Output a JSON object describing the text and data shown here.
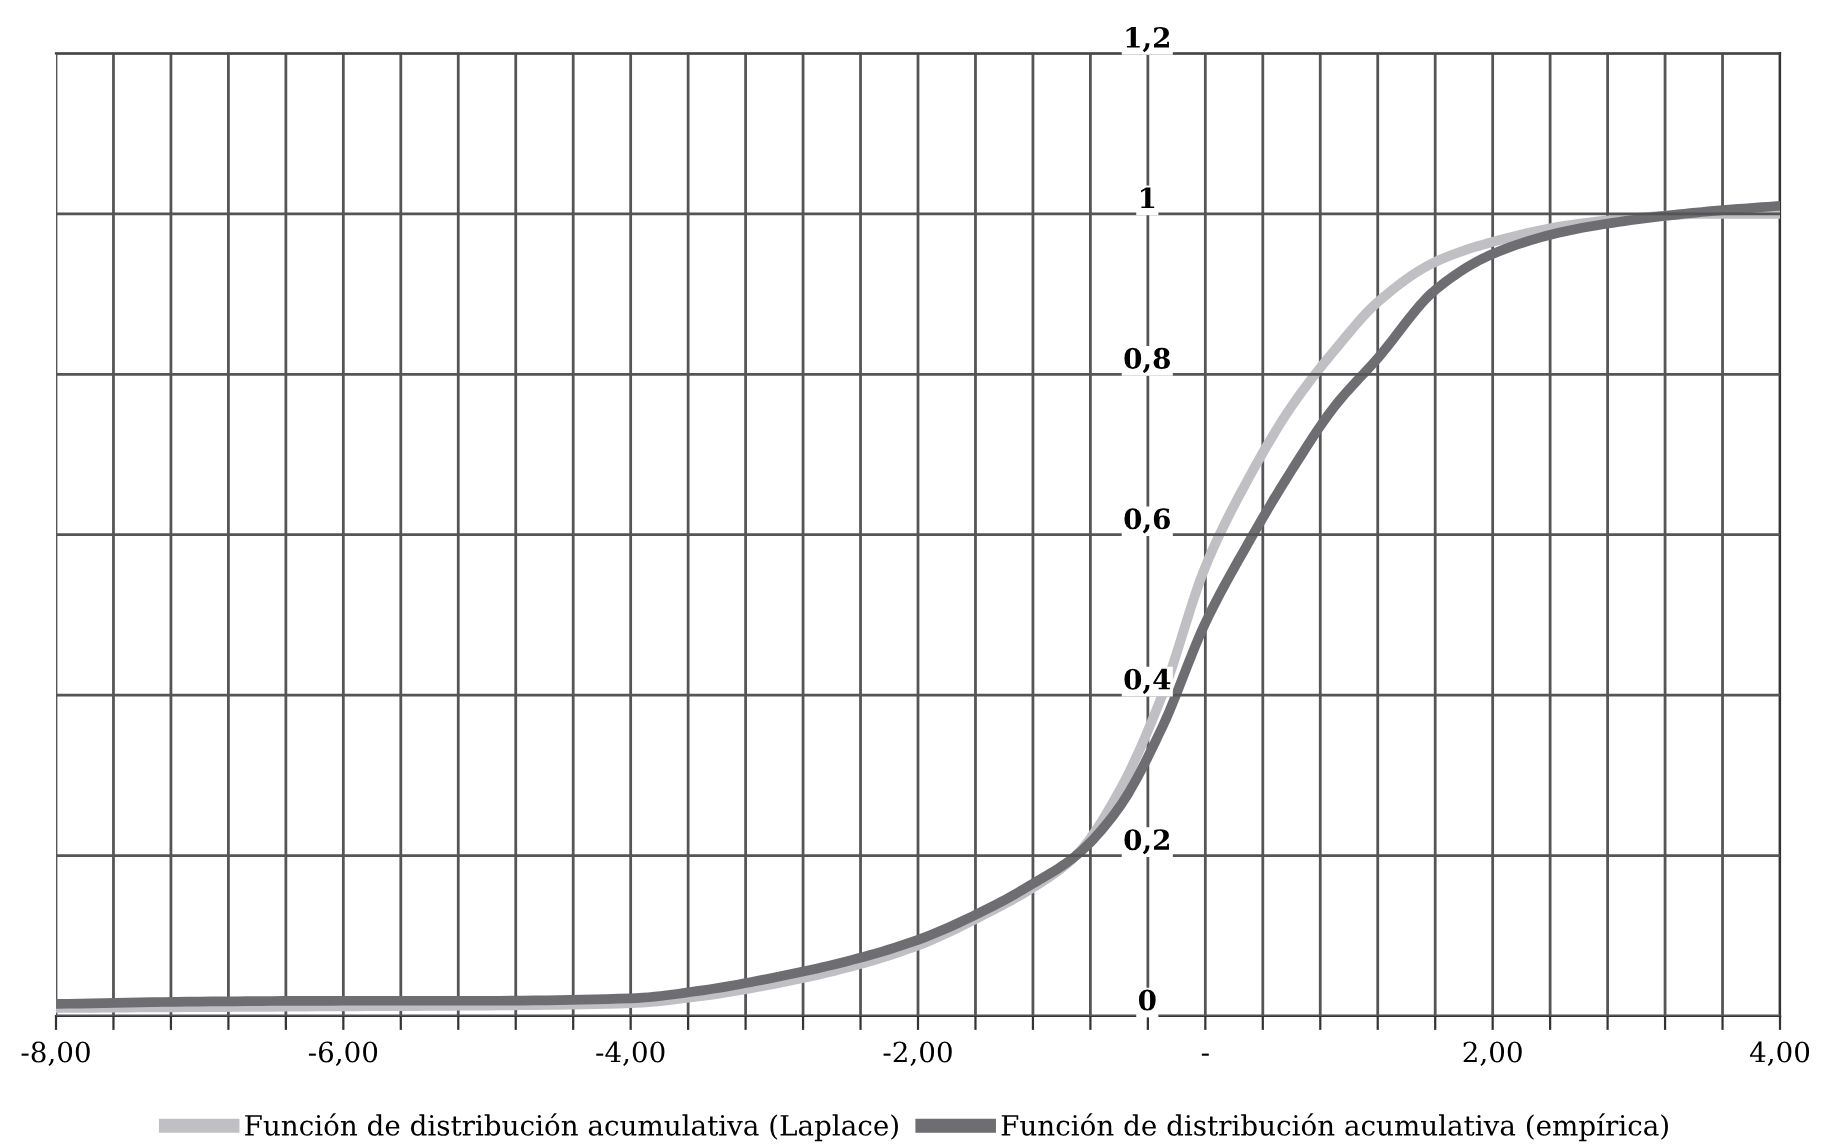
{
  "chart_data": {
    "type": "line",
    "x": [
      -8,
      -7,
      -6,
      -5,
      -4,
      -3.5,
      -3,
      -2.5,
      -2,
      -1.5,
      -1.2,
      -0.9,
      -0.6,
      -0.3,
      0,
      0.3,
      0.6,
      0.9,
      1.2,
      1.6,
      2,
      2.5,
      3,
      3.5,
      4
    ],
    "series": [
      {
        "name": "Función de distribución acumulativa (Laplace)",
        "color": "#c0c0c4",
        "values": [
          0.01,
          0.011,
          0.012,
          0.013,
          0.016,
          0.025,
          0.04,
          0.06,
          0.088,
          0.13,
          0.16,
          0.2,
          0.28,
          0.4,
          0.56,
          0.67,
          0.76,
          0.83,
          0.89,
          0.94,
          0.965,
          0.985,
          0.995,
          1.0,
          1.0
        ]
      },
      {
        "name": "Función de distribución acumulativa (empírica)",
        "color": "#6d6d72",
        "values": [
          0.015,
          0.018,
          0.019,
          0.019,
          0.022,
          0.032,
          0.048,
          0.068,
          0.095,
          0.135,
          0.165,
          0.2,
          0.26,
          0.36,
          0.49,
          0.59,
          0.68,
          0.76,
          0.82,
          0.905,
          0.95,
          0.978,
          0.993,
          1.003,
          1.01
        ]
      }
    ],
    "xlim": [
      -8,
      4
    ],
    "ylim": [
      0,
      1.2
    ],
    "xticks": [
      {
        "value": -8,
        "label": "-8,00"
      },
      {
        "value": -7.6,
        "label": null
      },
      {
        "value": -7.2,
        "label": null
      },
      {
        "value": -6.8,
        "label": null
      },
      {
        "value": -6.4,
        "label": null
      },
      {
        "value": -6,
        "label": "-6,00"
      },
      {
        "value": -5.6,
        "label": null
      },
      {
        "value": -5.2,
        "label": null
      },
      {
        "value": -4.8,
        "label": null
      },
      {
        "value": -4.4,
        "label": null
      },
      {
        "value": -4,
        "label": "-4,00"
      },
      {
        "value": -3.6,
        "label": null
      },
      {
        "value": -3.2,
        "label": null
      },
      {
        "value": -2.8,
        "label": null
      },
      {
        "value": -2.4,
        "label": null
      },
      {
        "value": -2,
        "label": "-2,00"
      },
      {
        "value": -1.6,
        "label": null
      },
      {
        "value": -1.2,
        "label": null
      },
      {
        "value": -0.8,
        "label": null
      },
      {
        "value": -0.4,
        "label": null
      },
      {
        "value": 0,
        "label": "-"
      },
      {
        "value": 0.4,
        "label": null
      },
      {
        "value": 0.8,
        "label": null
      },
      {
        "value": 1.2,
        "label": null
      },
      {
        "value": 1.6,
        "label": null
      },
      {
        "value": 2,
        "label": "2,00"
      },
      {
        "value": 2.4,
        "label": null
      },
      {
        "value": 2.8,
        "label": null
      },
      {
        "value": 3.2,
        "label": null
      },
      {
        "value": 3.6,
        "label": null
      },
      {
        "value": 4,
        "label": "4,00"
      }
    ],
    "yticks": [
      0,
      {
        "value": 0.2,
        "label": "0,2"
      },
      {
        "value": 0.4,
        "label": "0,4"
      },
      {
        "value": 0.6,
        "label": "0,6"
      },
      {
        "value": 0.8,
        "label": "0,8"
      },
      1,
      {
        "value": 1.2,
        "label": "1,2"
      }
    ],
    "grid": true,
    "legend": "bottom",
    "marker": "none",
    "line_style": "solid"
  }
}
